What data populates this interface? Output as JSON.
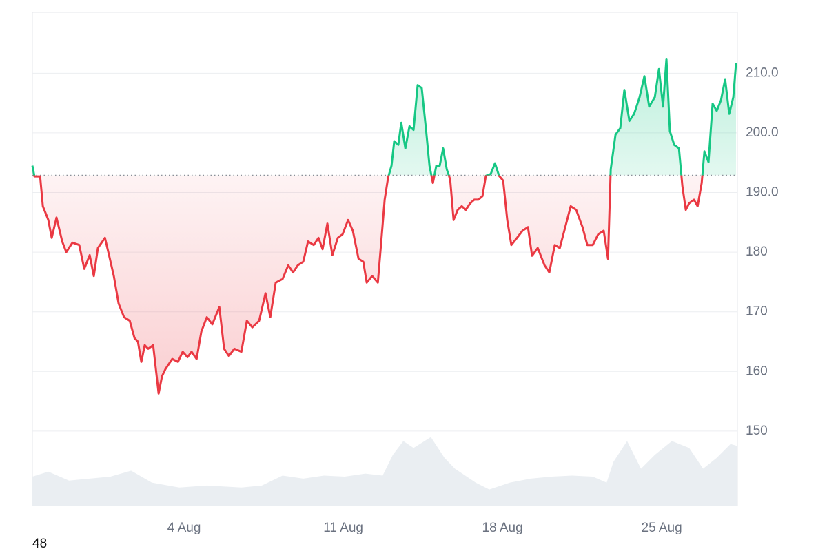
{
  "chart_data": {
    "type": "line",
    "x": [
      -2.67,
      -2.58,
      -2.33,
      -2.21,
      -1.97,
      -1.82,
      -1.61,
      -1.36,
      -1.18,
      -0.91,
      -0.61,
      -0.39,
      -0.15,
      0.03,
      0.21,
      0.52,
      0.7,
      0.91,
      1.12,
      1.36,
      1.61,
      1.82,
      1.97,
      2.12,
      2.27,
      2.42,
      2.64,
      2.88,
      3.03,
      3.18,
      3.48,
      3.73,
      3.94,
      4.15,
      4.33,
      4.55,
      4.76,
      5.0,
      5.24,
      5.55,
      5.76,
      5.97,
      6.21,
      6.52,
      6.76,
      7.0,
      7.3,
      7.58,
      7.79,
      8.03,
      8.33,
      8.58,
      8.79,
      9.0,
      9.24,
      9.45,
      9.7,
      9.91,
      10.09,
      10.3,
      10.52,
      10.76,
      10.97,
      11.21,
      11.42,
      11.67,
      11.88,
      12.03,
      12.27,
      12.52,
      12.67,
      12.82,
      12.97,
      13.12,
      13.24,
      13.42,
      13.55,
      13.73,
      13.91,
      14.09,
      14.27,
      14.45,
      14.64,
      14.79,
      14.94,
      15.09,
      15.24,
      15.39,
      15.55,
      15.7,
      15.85,
      16.03,
      16.21,
      16.39,
      16.58,
      16.76,
      16.94,
      17.12,
      17.27,
      17.48,
      17.67,
      17.85,
      18.03,
      18.21,
      18.39,
      18.64,
      18.88,
      19.12,
      19.3,
      19.55,
      19.85,
      20.06,
      20.3,
      20.52,
      20.76,
      21.0,
      21.24,
      21.52,
      21.73,
      21.97,
      22.21,
      22.45,
      22.64,
      22.76,
      22.97,
      23.18,
      23.36,
      23.58,
      23.79,
      24.03,
      24.24,
      24.45,
      24.7,
      24.88,
      25.06,
      25.21,
      25.36,
      25.55,
      25.76,
      25.91,
      26.06,
      26.21,
      26.42,
      26.58,
      26.76,
      26.88,
      27.06,
      27.24,
      27.42,
      27.61,
      27.79,
      27.97,
      28.15,
      28.27
    ],
    "values": [
      194.5,
      192.7,
      192.7,
      187.7,
      185.4,
      182.4,
      185.8,
      181.8,
      180,
      181.6,
      181.2,
      177.2,
      179.5,
      176,
      180.7,
      182.4,
      179.5,
      176,
      171.4,
      169.1,
      168.5,
      165.6,
      165,
      161.6,
      164.4,
      163.8,
      164.4,
      156.3,
      159.2,
      160.4,
      162.1,
      161.6,
      163.3,
      162.4,
      163.3,
      162.1,
      166.7,
      169.1,
      167.9,
      170.8,
      163.8,
      162.6,
      163.8,
      163.3,
      168.5,
      167.4,
      168.5,
      173.1,
      169.1,
      174.9,
      175.5,
      177.8,
      176.6,
      177.8,
      178.4,
      181.8,
      181.2,
      182.4,
      180.5,
      184.8,
      179.5,
      182.4,
      183,
      185.4,
      183.6,
      178.9,
      178.4,
      174.9,
      176,
      174.9,
      181.8,
      188.8,
      192.5,
      194.5,
      198.6,
      198,
      201.7,
      197.4,
      201.1,
      200.5,
      208,
      207.5,
      200.5,
      194.5,
      191.6,
      194.5,
      194.5,
      197.4,
      193.9,
      192.2,
      185.4,
      187.1,
      187.7,
      187.1,
      188.2,
      188.8,
      188.8,
      189.4,
      192.8,
      193.1,
      194.9,
      192.8,
      192,
      185.4,
      181.2,
      182.4,
      183.6,
      184.2,
      179.4,
      180.7,
      177.8,
      176.6,
      181.2,
      180.7,
      184.2,
      187.7,
      187.1,
      184.2,
      181.2,
      181.2,
      183,
      183.6,
      178.9,
      193.9,
      199.7,
      200.8,
      207.2,
      202,
      203.2,
      206,
      209.5,
      204.4,
      206,
      210.7,
      204.4,
      212.4,
      200.3,
      198,
      197.4,
      191.1,
      187.1,
      188.2,
      188.8,
      187.7,
      191.6,
      196.9,
      195.1,
      204.9,
      203.7,
      205.5,
      209,
      203.2,
      206,
      211.7
    ],
    "baseline": 192.9,
    "up_color": "#16c784",
    "down_color": "#ea3943",
    "volume": {
      "x": [
        -2.67,
        -1.97,
        -1.06,
        -0.15,
        0.76,
        1.67,
        2.58,
        3.79,
        5.0,
        6.52,
        7.42,
        8.33,
        9.24,
        10.15,
        11.06,
        11.97,
        12.73,
        13.18,
        13.64,
        14.09,
        14.85,
        15.45,
        15.91,
        16.82,
        17.42,
        18.33,
        19.24,
        20.15,
        21.06,
        21.97,
        22.58,
        22.88,
        23.48,
        24.09,
        24.7,
        25.45,
        26.21,
        26.82,
        27.42,
        28.03,
        28.33
      ],
      "values": [
        30,
        35,
        26,
        28,
        30,
        36,
        24,
        19,
        21,
        19,
        21,
        31,
        28,
        31,
        30,
        33,
        31,
        52,
        66,
        59,
        70,
        49,
        38,
        24,
        17,
        24,
        28,
        30,
        31,
        30,
        24,
        45,
        66,
        38,
        52,
        66,
        59,
        38,
        49,
        63,
        61
      ],
      "axis": "y2",
      "color": "#eaeef2"
    },
    "xlim": [
      -2.67,
      28.33
    ],
    "xticks": [
      {
        "value": 4,
        "label": "4 Aug"
      },
      {
        "value": 11,
        "label": "11 Aug"
      },
      {
        "value": 18,
        "label": "18 Aug"
      },
      {
        "value": 25,
        "label": "25 Aug"
      }
    ],
    "ylim": [
      137.4,
      220.2
    ],
    "yticks": [
      150,
      160,
      170,
      180,
      {
        "value": 190,
        "label": "190.0"
      },
      {
        "value": 200,
        "label": "200.0"
      },
      {
        "value": 210,
        "label": "210.0"
      }
    ],
    "y2lim": [
      0,
      500
    ],
    "grid": true,
    "footnote": "48"
  }
}
